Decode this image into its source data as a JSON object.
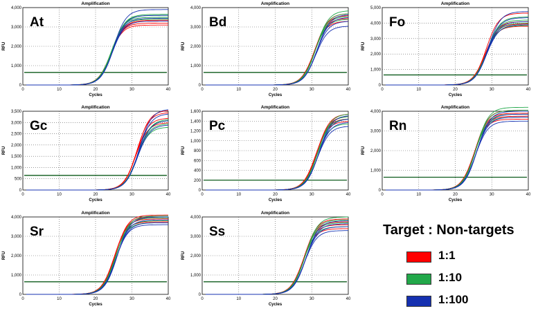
{
  "chart_data": [
    {
      "type": "line",
      "label": "At",
      "title": "Amplification",
      "xlabel": "Cycles",
      "ylabel": "RFU",
      "xlim": [
        0,
        40
      ],
      "ylim": [
        0,
        4000
      ],
      "xticks": [
        "0",
        "10",
        "20",
        "30",
        "40"
      ],
      "yticks": [
        "0",
        "1,000",
        "2,000",
        "3,000",
        "4,000"
      ],
      "threshold": 650,
      "midpoint": 24.5,
      "baseline": 0,
      "series": [
        {
          "name": "1:1",
          "values": [
            3100,
            3200,
            3300,
            3350
          ]
        },
        {
          "name": "1:10",
          "values": [
            3400,
            3500,
            3600,
            3650
          ]
        },
        {
          "name": "1:100",
          "values": [
            3300,
            3450,
            3600,
            3900
          ]
        }
      ]
    },
    {
      "type": "line",
      "label": "Bd",
      "title": "Amplification",
      "xlabel": "Cycles",
      "ylabel": "RFU",
      "xlim": [
        0,
        40
      ],
      "ylim": [
        0,
        4000
      ],
      "xticks": [
        "0",
        "10",
        "20",
        "30",
        "40"
      ],
      "yticks": [
        "0",
        "1,000",
        "2,000",
        "3,000",
        "4,000"
      ],
      "threshold": 650,
      "midpoint": 31,
      "baseline": 0,
      "series": [
        {
          "name": "1:1",
          "values": [
            3300,
            3450,
            3600,
            3700
          ]
        },
        {
          "name": "1:10",
          "values": [
            3400,
            3550,
            3700,
            3850
          ]
        },
        {
          "name": "1:100",
          "values": [
            3050,
            3300,
            3500,
            3650
          ]
        }
      ]
    },
    {
      "type": "line",
      "label": "Fo",
      "title": "Amplification",
      "xlabel": "Cycles",
      "ylabel": "RFU",
      "xlim": [
        0,
        40
      ],
      "ylim": [
        0,
        5000
      ],
      "xticks": [
        "0",
        "10",
        "20",
        "30",
        "40"
      ],
      "yticks": [
        "0",
        "1,000",
        "2,000",
        "3,000",
        "4,000",
        "5,000"
      ],
      "threshold": 650,
      "midpoint": 28.5,
      "baseline": 0,
      "series": [
        {
          "name": "1:1",
          "values": [
            3800,
            3950,
            4100,
            4650
          ]
        },
        {
          "name": "1:10",
          "values": [
            3850,
            4000,
            4200,
            4400
          ]
        },
        {
          "name": "1:100",
          "values": [
            3900,
            4100,
            4350,
            4750
          ]
        }
      ]
    },
    {
      "type": "line",
      "label": "Gc",
      "title": "Amplification",
      "xlabel": "Cycles",
      "ylabel": "RFU",
      "xlim": [
        0,
        40
      ],
      "ylim": [
        0,
        3500
      ],
      "xticks": [
        "0",
        "10",
        "20",
        "30",
        "40"
      ],
      "yticks": [
        "0",
        "500",
        "1,000",
        "1,500",
        "2,000",
        "2,500",
        "3,000",
        "3,500"
      ],
      "threshold": 650,
      "midpoint": 31.5,
      "baseline": 0,
      "series": [
        {
          "name": "1:1",
          "values": [
            3000,
            3200,
            3450,
            3550
          ]
        },
        {
          "name": "1:10",
          "values": [
            2800,
            2950,
            3100,
            3150
          ]
        },
        {
          "name": "1:100",
          "values": [
            2900,
            3100,
            3400,
            3600
          ]
        }
      ]
    },
    {
      "type": "line",
      "label": "Pc",
      "title": "Amplification",
      "xlabel": "Cycles",
      "ylabel": "RFU",
      "xlim": [
        0,
        40
      ],
      "ylim": [
        0,
        1600
      ],
      "xticks": [
        "0",
        "10",
        "20",
        "30",
        "40"
      ],
      "yticks": [
        "0",
        "200",
        "400",
        "600",
        "800",
        "1,000",
        "1,200",
        "1,400",
        "1,600"
      ],
      "threshold": 200,
      "midpoint": 31.5,
      "baseline": 0,
      "series": [
        {
          "name": "1:1",
          "values": [
            1400,
            1450,
            1500,
            1550
          ]
        },
        {
          "name": "1:10",
          "values": [
            1350,
            1450,
            1500,
            1550
          ]
        },
        {
          "name": "1:100",
          "values": [
            1300,
            1380,
            1450,
            1520
          ]
        }
      ]
    },
    {
      "type": "line",
      "label": "Rn",
      "title": "Amplification",
      "xlabel": "Cycles",
      "ylabel": "RFU",
      "xlim": [
        0,
        40
      ],
      "ylim": [
        0,
        4000
      ],
      "xticks": [
        "0",
        "10",
        "20",
        "30",
        "40"
      ],
      "yticks": [
        "0",
        "1,000",
        "2,000",
        "3,000",
        "4,000"
      ],
      "threshold": 650,
      "midpoint": 25.5,
      "baseline": 0,
      "series": [
        {
          "name": "1:1",
          "values": [
            3600,
            3750,
            3900,
            4050
          ]
        },
        {
          "name": "1:10",
          "values": [
            3700,
            3850,
            4050,
            4200
          ]
        },
        {
          "name": "1:100",
          "values": [
            3500,
            3700,
            3850,
            4000
          ]
        }
      ]
    },
    {
      "type": "line",
      "label": "Sr",
      "title": "Amplification",
      "xlabel": "Cycles",
      "ylabel": "RFU",
      "xlim": [
        0,
        40
      ],
      "ylim": [
        0,
        4000
      ],
      "xticks": [
        "0",
        "10",
        "20",
        "30",
        "40"
      ],
      "yticks": [
        "0",
        "1,000",
        "2,000",
        "3,000",
        "4,000"
      ],
      "threshold": 650,
      "midpoint": 25.5,
      "baseline": 0,
      "series": [
        {
          "name": "1:1",
          "values": [
            3750,
            3900,
            4000,
            4100
          ]
        },
        {
          "name": "1:10",
          "values": [
            3700,
            3800,
            3950,
            4050
          ]
        },
        {
          "name": "1:100",
          "values": [
            3600,
            3700,
            3850,
            4000
          ]
        }
      ]
    },
    {
      "type": "line",
      "label": "Ss",
      "title": "Amplification",
      "xlabel": "Cycles",
      "ylabel": "RFU",
      "xlim": [
        0,
        40
      ],
      "ylim": [
        0,
        4000
      ],
      "xticks": [
        "0",
        "10",
        "20",
        "30",
        "40"
      ],
      "yticks": [
        "0",
        "1,000",
        "2,000",
        "3,000",
        "4,000"
      ],
      "threshold": 650,
      "midpoint": 28,
      "baseline": 0,
      "series": [
        {
          "name": "1:1",
          "values": [
            3400,
            3600,
            3750,
            3900
          ]
        },
        {
          "name": "1:10",
          "values": [
            3500,
            3700,
            3850,
            4000
          ]
        },
        {
          "name": "1:100",
          "values": [
            3300,
            3500,
            3650,
            3800
          ]
        }
      ]
    }
  ],
  "legend": {
    "title": "Target : Non-targets",
    "items": [
      {
        "label": "1:1",
        "color": "#ff0000"
      },
      {
        "label": "1:10",
        "color": "#22a84a"
      },
      {
        "label": "1:100",
        "color": "#1530b0"
      }
    ]
  },
  "threshold_color": "#0b5a1a"
}
